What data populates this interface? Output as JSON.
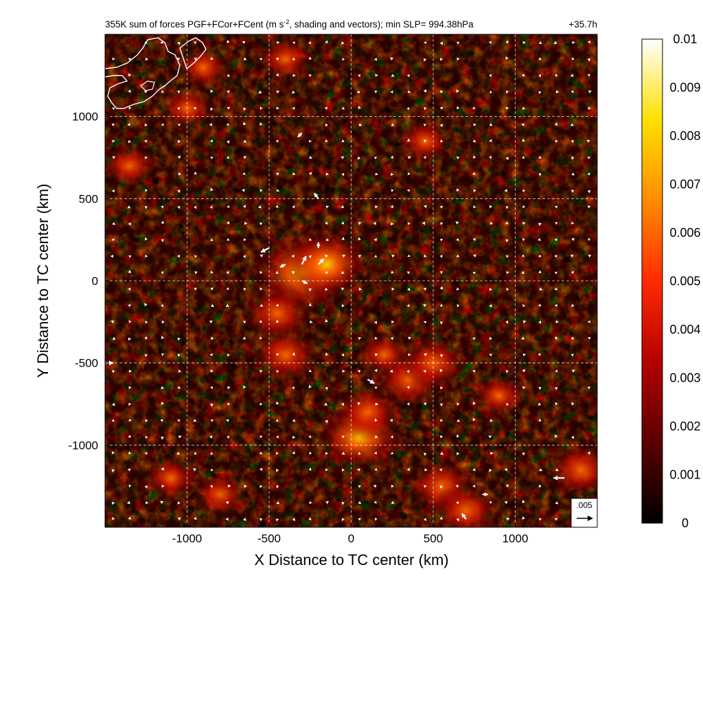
{
  "chart_data": {
    "type": "heatmap",
    "title": "355K sum of forces PGF+FCor+FCent (m s⁻², shading and vectors); min SLP= 994.38hPa",
    "time_label": "+35.7h",
    "xlabel": "X Distance to TC center (km)",
    "ylabel": "Y Distance to TC center (km)",
    "xlim": [
      -1500,
      1500
    ],
    "ylim": [
      -1500,
      1500
    ],
    "xticks": [
      -1000,
      -500,
      0,
      500,
      1000
    ],
    "yticks": [
      -1000,
      -500,
      0,
      500,
      1000
    ],
    "xtick_labels": [
      "-1000",
      "-500",
      "0",
      "500",
      "1000"
    ],
    "ytick_labels": [
      "-1000",
      "-500",
      "0",
      "500",
      "1000"
    ],
    "grid": true,
    "colorbar": {
      "min": 0,
      "max": 0.01,
      "ticks": [
        0,
        0.001,
        0.002,
        0.003,
        0.004,
        0.005,
        0.006,
        0.007,
        0.008,
        0.009,
        0.01
      ],
      "tick_labels": [
        "0",
        "0.001",
        "0.002",
        "0.003",
        "0.004",
        "0.005",
        "0.006",
        "0.007",
        "0.008",
        "0.009",
        "0.01"
      ],
      "colors": [
        "#000000",
        "#5a0000",
        "#b40000",
        "#ff2a00",
        "#ff8c00",
        "#ffe000",
        "#ffffff"
      ]
    },
    "reference_vector": {
      "label": ".005",
      "value": 0.005
    },
    "background_level": 0.001,
    "hotspots": [
      {
        "x": -300,
        "y": 50,
        "value": 0.005
      },
      {
        "x": -150,
        "y": 100,
        "value": 0.004
      },
      {
        "x": -400,
        "y": -450,
        "value": 0.003
      },
      {
        "x": 50,
        "y": -950,
        "value": 0.004
      },
      {
        "x": 100,
        "y": -800,
        "value": 0.003
      },
      {
        "x": 350,
        "y": -600,
        "value": 0.003
      },
      {
        "x": 500,
        "y": -500,
        "value": 0.003
      },
      {
        "x": 550,
        "y": -1250,
        "value": 0.003
      },
      {
        "x": 700,
        "y": -1400,
        "value": 0.003
      },
      {
        "x": 1400,
        "y": -1150,
        "value": 0.003
      },
      {
        "x": -1350,
        "y": 700,
        "value": 0.002
      },
      {
        "x": -1100,
        "y": -1200,
        "value": 0.002
      },
      {
        "x": -800,
        "y": -1300,
        "value": 0.002
      },
      {
        "x": -1000,
        "y": 1050,
        "value": 0.002
      },
      {
        "x": -900,
        "y": 1300,
        "value": 0.002
      },
      {
        "x": -400,
        "y": 1350,
        "value": 0.002
      },
      {
        "x": 450,
        "y": 850,
        "value": 0.002
      },
      {
        "x": 900,
        "y": -700,
        "value": 0.002
      },
      {
        "x": -450,
        "y": -200,
        "value": 0.003
      },
      {
        "x": 200,
        "y": -450,
        "value": 0.002
      }
    ],
    "vectors": [
      {
        "x": -500,
        "y": 200,
        "u": -0.003,
        "v": -0.0015
      },
      {
        "x": -400,
        "y": 100,
        "u": -0.002,
        "v": -0.001
      },
      {
        "x": -300,
        "y": 100,
        "u": 0.0015,
        "v": 0.003
      },
      {
        "x": -200,
        "y": 100,
        "u": 0.002,
        "v": 0.002
      },
      {
        "x": -300,
        "y": 0,
        "u": 0.002,
        "v": -0.001
      },
      {
        "x": -200,
        "y": 200,
        "u": 0.0,
        "v": 0.002
      },
      {
        "x": -200,
        "y": 500,
        "u": -0.0015,
        "v": 0.002
      },
      {
        "x": 100,
        "y": -600,
        "u": 0.0025,
        "v": -0.0015
      },
      {
        "x": 1300,
        "y": -1200,
        "u": -0.004,
        "v": 0.0
      },
      {
        "x": -300,
        "y": 900,
        "u": -0.0015,
        "v": -0.0015
      },
      {
        "x": -1500,
        "y": -500,
        "u": 0.003,
        "v": 0.0
      },
      {
        "x": 700,
        "y": -1450,
        "u": -0.0015,
        "v": 0.002
      },
      {
        "x": 800,
        "y": -1300,
        "u": 0.002,
        "v": 0.0
      }
    ]
  }
}
